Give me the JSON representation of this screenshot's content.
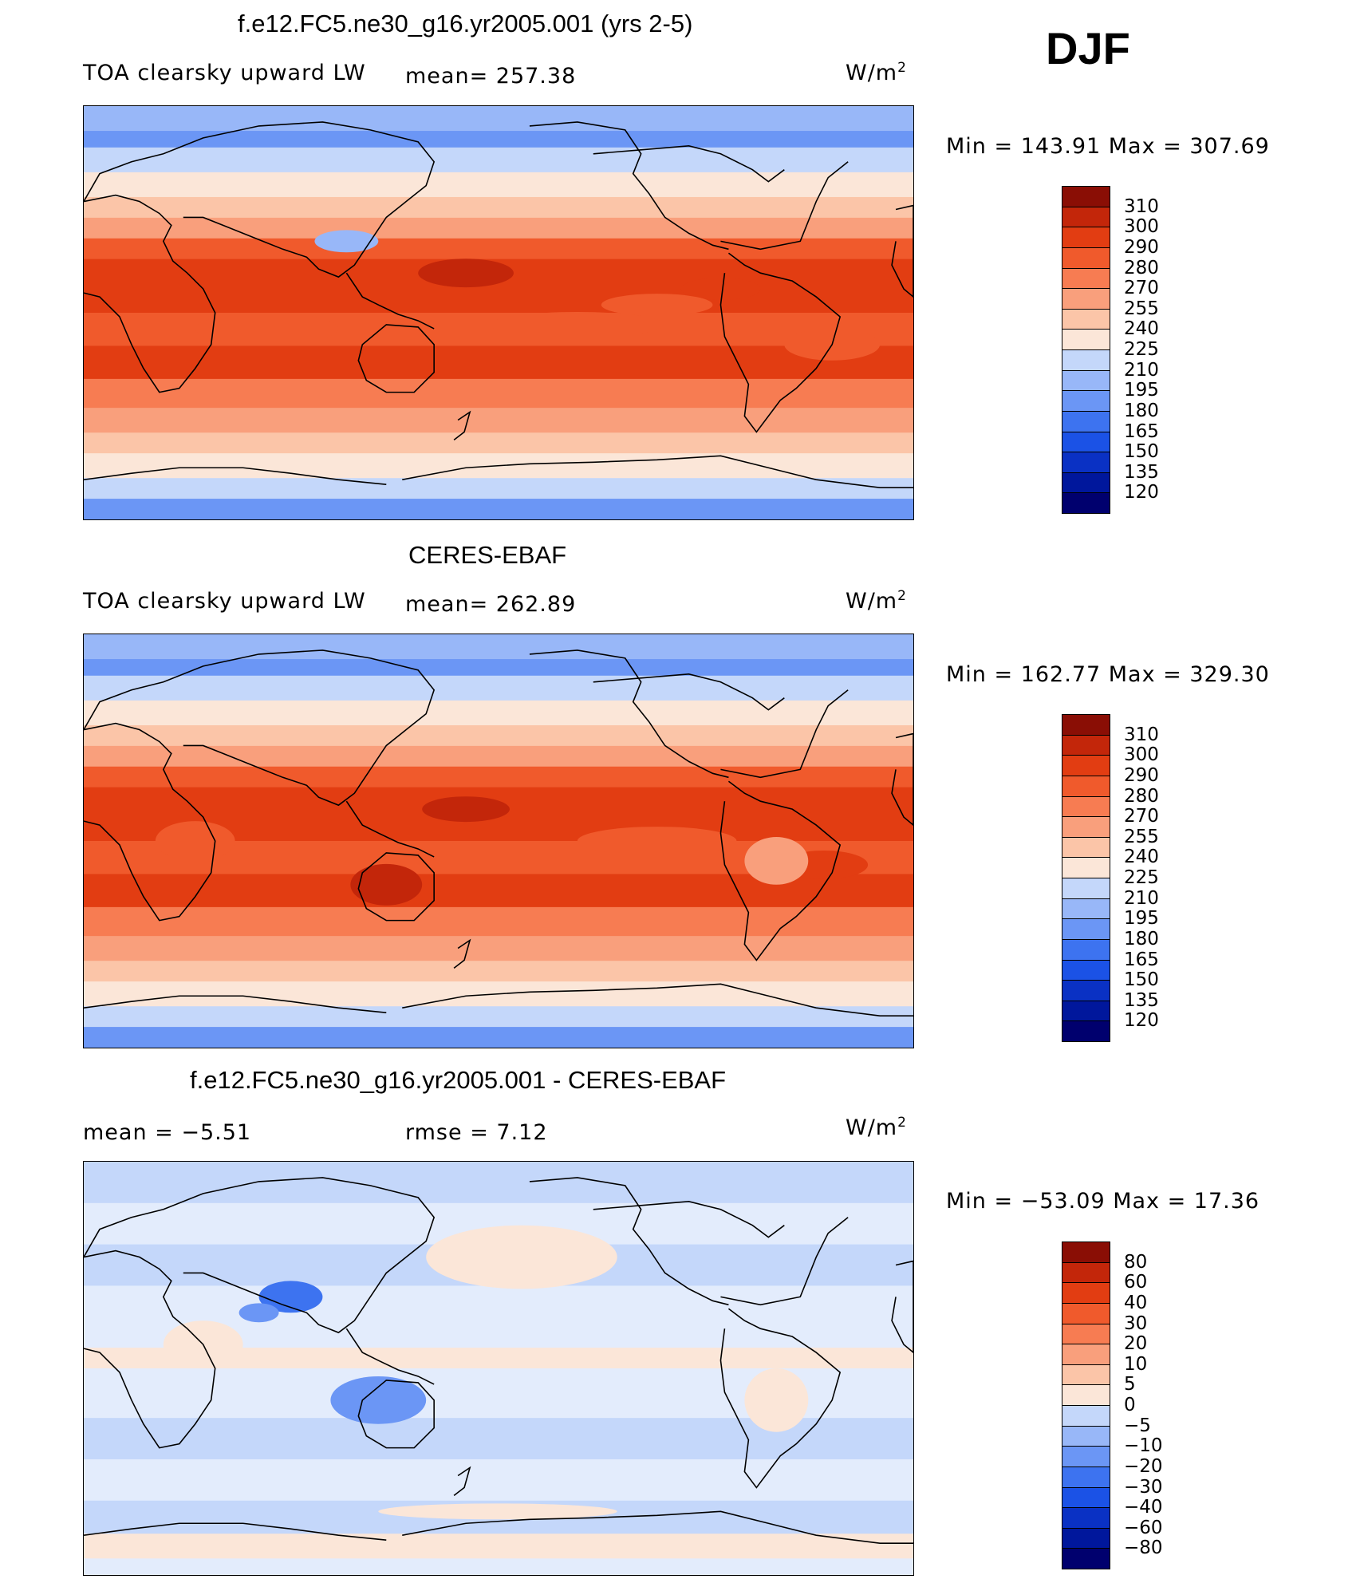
{
  "season": "DJF",
  "panels": [
    {
      "title": "f.e12.FC5.ne30_g16.yr2005.001 (yrs 2-5)",
      "left_text": "TOA clearsky upward LW",
      "mid_text": "mean= 257.38",
      "units": "W/m",
      "units_sup": "2",
      "minmax": "Min = 143.91 Max = 307.69",
      "levels": [
        "310",
        "300",
        "290",
        "280",
        "270",
        "255",
        "240",
        "225",
        "210",
        "195",
        "180",
        "165",
        "150",
        "135",
        "120"
      ]
    },
    {
      "title": "CERES-EBAF",
      "left_text": "TOA clearsky upward LW",
      "mid_text": "mean= 262.89",
      "units": "W/m",
      "units_sup": "2",
      "minmax": "Min = 162.77 Max = 329.30",
      "levels": [
        "310",
        "300",
        "290",
        "280",
        "270",
        "255",
        "240",
        "225",
        "210",
        "195",
        "180",
        "165",
        "150",
        "135",
        "120"
      ]
    },
    {
      "title": "f.e12.FC5.ne30_g16.yr2005.001 - CERES-EBAF",
      "left_text": "mean = −5.51",
      "mid_text": "rmse = 7.12",
      "units": "W/m",
      "units_sup": "2",
      "minmax": "Min = −53.09 Max = 17.36",
      "levels": [
        "80",
        "60",
        "40",
        "30",
        "20",
        "10",
        "5",
        "0",
        "−5",
        "−10",
        "−20",
        "−30",
        "−40",
        "−60",
        "−80"
      ]
    }
  ],
  "colors": {
    "ramp": [
      "#00006e",
      "#00179c",
      "#0a31c4",
      "#1b52e6",
      "#3d73f0",
      "#6b96f5",
      "#98b7f8",
      "#c4d7fa",
      "#e3ecfc",
      "#fbe6d8",
      "#fbc5a8",
      "#f99f7c",
      "#f77c52",
      "#f05a2c",
      "#e23d12",
      "#c3260a",
      "#8a0e05"
    ],
    "land_outline": "#000000"
  }
}
